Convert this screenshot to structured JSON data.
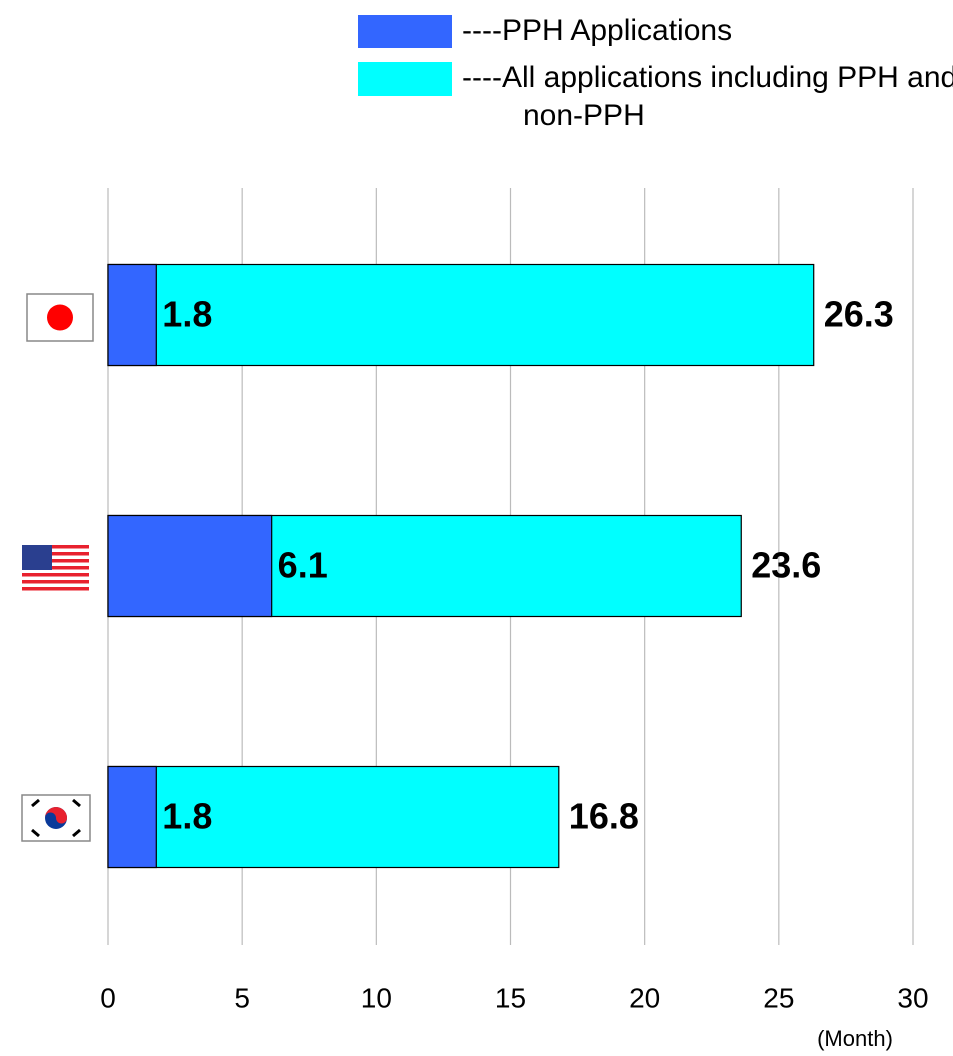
{
  "chart_data": {
    "type": "bar",
    "orientation": "horizontal",
    "categories": [
      null,
      null,
      null
    ],
    "series": [
      {
        "name": "----PPH Applications",
        "color": "#3366ff",
        "values": [
          1.8,
          6.1,
          1.8
        ]
      },
      {
        "name": "----All applications including PPH and non-PPH",
        "color": "#00ffff",
        "values": [
          26.3,
          23.6,
          16.8
        ]
      }
    ],
    "xlim": [
      0,
      30
    ],
    "xticks": [
      0,
      5,
      10,
      15,
      20,
      25,
      30
    ],
    "grid": true,
    "x_label": "(Month)"
  }
}
